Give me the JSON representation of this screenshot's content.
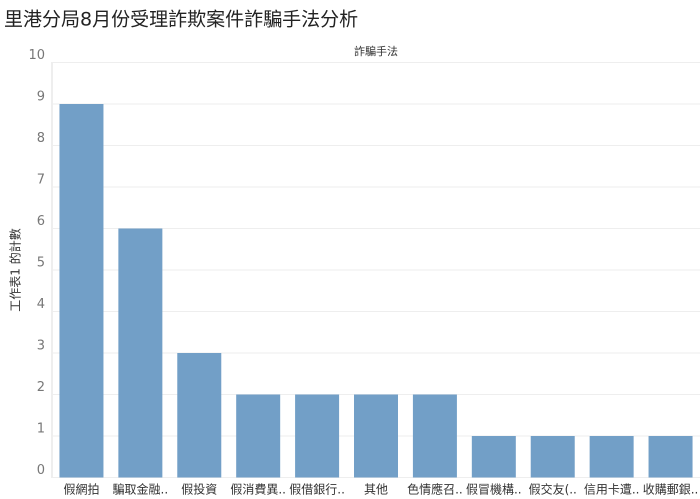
{
  "chart_data": {
    "type": "bar",
    "title": "里港分局8月份受理詐欺案件詐騙手法分析",
    "header": "詐騙手法",
    "y_label": "工作表1 的計數",
    "categories": [
      "假網拍",
      "騙取金融..",
      "假投資",
      "假消費異..",
      "假借銀行..",
      "其他",
      "色情應召..",
      "假冒機構..",
      "假交友(..",
      "信用卡遭..",
      "收購郵銀.."
    ],
    "values": [
      9,
      6,
      3,
      2,
      2,
      2,
      2,
      1,
      1,
      1,
      1
    ],
    "color": "#729fc7",
    "ylim": [
      0,
      10
    ],
    "yticks": [
      0,
      1,
      2,
      3,
      4,
      5,
      6,
      7,
      8,
      9,
      10
    ],
    "grid": true
  }
}
